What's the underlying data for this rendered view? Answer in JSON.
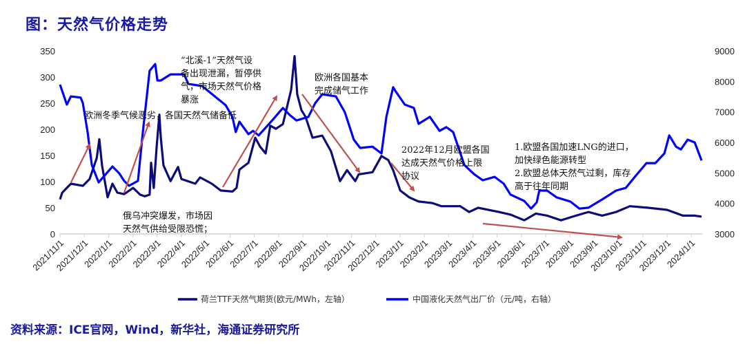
{
  "title": "图：天然气价格走势",
  "source": "资料来源：ICE官网，Wind，新华社，海通证券研究所",
  "colors": {
    "ttf": "#0b0b7c",
    "lng": "#0000ff",
    "arrow": "#c0504d"
  },
  "chart_data": {
    "type": "line",
    "title": "天然气价格走势",
    "x_unit": "months since 2021/11/1",
    "x_tick_labels": [
      "2021/11/1",
      "2021/12/1",
      "2022/1/1",
      "2022/2/1",
      "2022/3/1",
      "2022/4/1",
      "2022/5/1",
      "2022/6/1",
      "2022/7/1",
      "2022/8/1",
      "2022/9/1",
      "2022/10/1",
      "2022/11/1",
      "2022/12/1",
      "2023/1/1",
      "2023/2/1",
      "2023/3/1",
      "2023/4/1",
      "2023/5/1",
      "2023/6/1",
      "2023/7/1",
      "2023/8/1",
      "2023/9/1",
      "2023/10/1",
      "2023/11/1",
      "2023/12/1",
      "2024/1/1"
    ],
    "y_left": {
      "range": [
        0,
        350
      ],
      "ticks": [
        "0",
        "50",
        "100",
        "150",
        "200",
        "250",
        "300",
        "350"
      ]
    },
    "y_right": {
      "range": [
        3000,
        9000
      ],
      "ticks": [
        "3000",
        "4000",
        "5000",
        "6000",
        "7000",
        "8000",
        "9000"
      ]
    },
    "legend_position": "bottom",
    "series": [
      {
        "name": "荷兰TTF天然气期货(欧元/MWh，左轴）",
        "axis": "left",
        "x": [
          0,
          0.09,
          0.45,
          0.94,
          1.22,
          1.51,
          1.62,
          1.73,
          1.96,
          2.16,
          2.36,
          2.64,
          3.01,
          3.3,
          3.49,
          3.69,
          3.75,
          3.86,
          3.98,
          4.09,
          4.15,
          4.26,
          4.55,
          4.86,
          5.0,
          5.57,
          5.77,
          6.25,
          6.62,
          7.1,
          7.27,
          7.39,
          7.76,
          8.04,
          8.24,
          8.47,
          8.66,
          8.89,
          9.18,
          9.52,
          9.66,
          9.77,
          9.94,
          10.11,
          10.4,
          10.8,
          11.16,
          11.53,
          11.82,
          12.16,
          12.3,
          12.87,
          13.24,
          13.52,
          13.72,
          14.01,
          14.38,
          14.77,
          15.34,
          15.71,
          16.48,
          16.85,
          17.22,
          18.07,
          18.55,
          19.12,
          19.6,
          20.06,
          20.63,
          21.11,
          21.76,
          22.33,
          22.9,
          23.47,
          24.23,
          25.0,
          25.65,
          26.14,
          26.42
        ],
        "y": [
          66,
          79,
          96,
          92,
          105,
          145,
          181,
          131,
          70,
          96,
          79,
          76,
          88,
          75,
          72,
          75,
          136,
          88,
          167,
          228,
          184,
          131,
          101,
          128,
          105,
          96,
          108,
          96,
          83,
          81,
          88,
          123,
          136,
          184,
          167,
          154,
          207,
          201,
          210,
          276,
          340,
          267,
          237,
          224,
          184,
          188,
          158,
          101,
          122,
          101,
          114,
          118,
          149,
          141,
          122,
          83,
          70,
          62,
          59,
          53,
          53,
          42,
          50,
          42,
          37,
          26,
          39,
          35,
          26,
          33,
          42,
          35,
          42,
          53,
          50,
          46,
          35,
          35,
          33
        ]
      },
      {
        "name": "中国液化天然气出厂价（元/吨，右轴）",
        "axis": "right",
        "x": [
          0,
          0.28,
          0.45,
          0.85,
          0.94,
          1.14,
          1.31,
          1.59,
          1.79,
          2.16,
          2.44,
          2.64,
          2.84,
          3.21,
          3.41,
          3.69,
          3.92,
          4.01,
          4.15,
          4.55,
          5.11,
          5.28,
          5.85,
          6.82,
          7.1,
          7.24,
          7.39,
          7.76,
          7.95,
          8.18,
          8.69,
          9.18,
          9.46,
          9.74,
          10.23,
          10.51,
          10.8,
          11.36,
          11.73,
          12.1,
          12.36,
          12.87,
          13.24,
          13.44,
          13.72,
          13.81,
          14.2,
          14.57,
          14.77,
          15.23,
          15.63,
          15.91,
          16.19,
          16.65,
          17.05,
          17.41,
          17.9,
          18.27,
          18.55,
          19.12,
          19.4,
          19.63,
          19.74,
          20.06,
          20.45,
          21.02,
          21.39,
          21.76,
          22.33,
          22.9,
          23.3,
          23.67,
          24.15,
          24.52,
          24.89,
          25.09,
          25.37,
          25.57,
          25.85,
          26.14,
          26.42
        ],
        "y": [
          7895,
          7240,
          7510,
          7470,
          7290,
          6320,
          5260,
          4690,
          4870,
          5210,
          4985,
          4740,
          4580,
          4740,
          6320,
          8350,
          8570,
          8030,
          8030,
          8230,
          8230,
          7920,
          7850,
          7220,
          6840,
          6340,
          6680,
          6270,
          6380,
          6230,
          6680,
          7130,
          6900,
          6720,
          6840,
          7290,
          7580,
          7510,
          6990,
          6090,
          5820,
          5860,
          5640,
          6840,
          7810,
          7690,
          7240,
          7130,
          6610,
          6840,
          6380,
          6500,
          6340,
          5260,
          4960,
          4760,
          4870,
          4650,
          4290,
          4080,
          3830,
          4030,
          4420,
          4420,
          4200,
          4060,
          3830,
          3860,
          4130,
          4420,
          4510,
          4870,
          5320,
          5320,
          5640,
          6230,
          5860,
          5770,
          6090,
          6000,
          5410
        ]
      }
    ],
    "annotations": [
      {
        "lines": [
          "欧洲冬季气候恶劣，各国天然气储备低"
        ]
      },
      {
        "lines": [
          "“北溪-1”天然气设",
          "备出现泄漏，暂停供",
          "气，市场天然气价格",
          "暴涨"
        ]
      },
      {
        "lines": [
          "俄乌冲突爆发，市场因",
          "天然气供给受限恐慌；"
        ]
      },
      {
        "lines": [
          "欧洲各国基本",
          "完成储气工作"
        ]
      },
      {
        "lines": [
          "2022年12月欧盟各国",
          "达成天然气价格上限",
          "协议"
        ]
      },
      {
        "lines": [
          "1.欧盟各国加速LNG的进口，",
          "加快绿色能源转型",
          "2.欧盟总体天然气过剩，库存",
          "高于往年同期"
        ]
      }
    ]
  }
}
